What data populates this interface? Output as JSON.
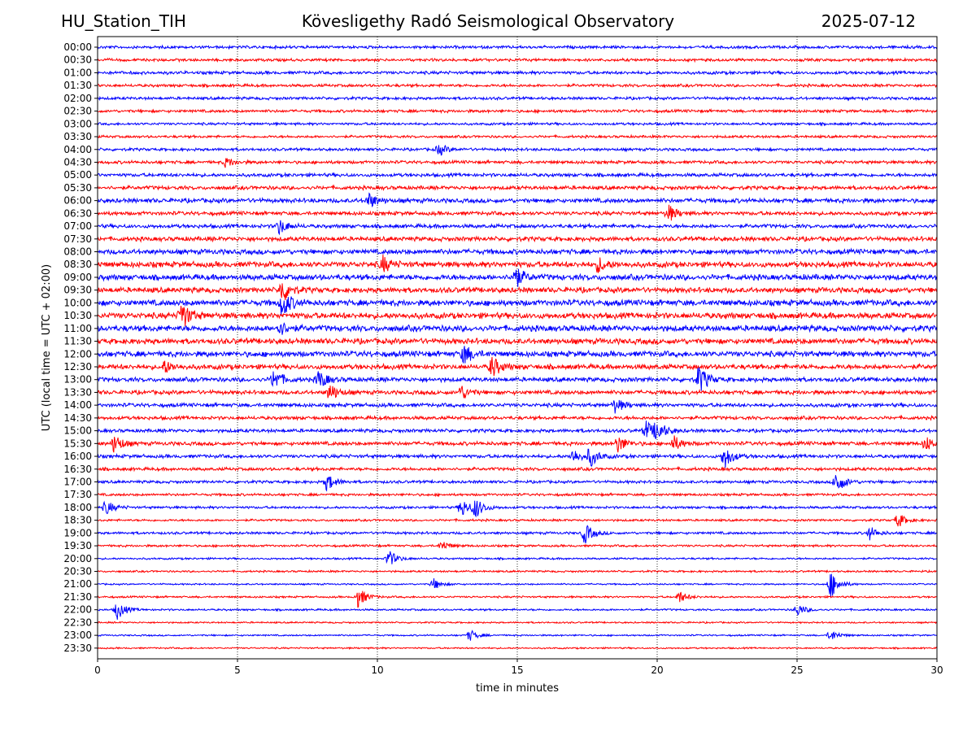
{
  "header": {
    "station": "HU_Station_TIH",
    "observatory": "Kövesligethy Radó Seismological Observatory",
    "date": "2025-07-12"
  },
  "chart_data": {
    "type": "line",
    "xlabel": "time in minutes",
    "ylabel": "UTC (local time = UTC + 02:00)",
    "xlim": [
      0,
      30
    ],
    "xticks": [
      0,
      5,
      10,
      15,
      20,
      25,
      30
    ],
    "grid": "vertical dotted at x ticks",
    "row_labels": [
      "00:00",
      "00:30",
      "01:00",
      "01:30",
      "02:00",
      "02:30",
      "03:00",
      "03:30",
      "04:00",
      "04:30",
      "05:00",
      "05:30",
      "06:00",
      "06:30",
      "07:00",
      "07:30",
      "08:00",
      "08:30",
      "09:00",
      "09:30",
      "10:00",
      "10:30",
      "11:00",
      "11:30",
      "12:00",
      "12:30",
      "13:00",
      "13:30",
      "14:00",
      "14:30",
      "15:00",
      "15:30",
      "16:00",
      "16:30",
      "17:00",
      "17:30",
      "18:00",
      "18:30",
      "19:00",
      "19:30",
      "20:00",
      "20:30",
      "21:00",
      "21:30",
      "22:00",
      "22:30",
      "23:00",
      "23:30"
    ],
    "colors": [
      "#0000ff",
      "#ff0000"
    ],
    "noise_level": [
      0.45,
      0.45,
      0.5,
      0.45,
      0.45,
      0.45,
      0.4,
      0.4,
      0.45,
      0.5,
      0.55,
      0.6,
      0.7,
      0.6,
      0.6,
      0.7,
      0.8,
      0.9,
      0.9,
      0.85,
      0.95,
      0.95,
      0.95,
      0.9,
      0.9,
      0.8,
      0.7,
      0.65,
      0.6,
      0.55,
      0.55,
      0.6,
      0.55,
      0.5,
      0.45,
      0.4,
      0.4,
      0.35,
      0.4,
      0.35,
      0.3,
      0.3,
      0.25,
      0.3,
      0.3,
      0.25,
      0.25,
      0.25
    ],
    "events": [
      {
        "row": 8,
        "t": 12.2,
        "amp": 1.2
      },
      {
        "row": 9,
        "t": 4.6,
        "amp": 1.0
      },
      {
        "row": 12,
        "t": 9.7,
        "amp": 1.5
      },
      {
        "row": 13,
        "t": 20.4,
        "amp": 1.8
      },
      {
        "row": 14,
        "t": 6.5,
        "amp": 1.6
      },
      {
        "row": 17,
        "t": 10.2,
        "amp": 1.6
      },
      {
        "row": 17,
        "t": 17.9,
        "amp": 1.5
      },
      {
        "row": 18,
        "t": 14.9,
        "amp": 2.5
      },
      {
        "row": 19,
        "t": 6.6,
        "amp": 2.5
      },
      {
        "row": 20,
        "t": 6.6,
        "amp": 3.0
      },
      {
        "row": 21,
        "t": 3.0,
        "amp": 3.0
      },
      {
        "row": 22,
        "t": 6.5,
        "amp": 1.5
      },
      {
        "row": 24,
        "t": 13.1,
        "amp": 2.0
      },
      {
        "row": 25,
        "t": 14.1,
        "amp": 2.2
      },
      {
        "row": 25,
        "t": 2.4,
        "amp": 1.3
      },
      {
        "row": 26,
        "t": 6.3,
        "amp": 2.2
      },
      {
        "row": 26,
        "t": 7.9,
        "amp": 2.0
      },
      {
        "row": 26,
        "t": 21.5,
        "amp": 3.0
      },
      {
        "row": 27,
        "t": 8.3,
        "amp": 1.8
      },
      {
        "row": 27,
        "t": 13.0,
        "amp": 1.5
      },
      {
        "row": 28,
        "t": 18.5,
        "amp": 1.5
      },
      {
        "row": 30,
        "t": 19.6,
        "amp": 2.0
      },
      {
        "row": 30,
        "t": 20.0,
        "amp": 2.0
      },
      {
        "row": 31,
        "t": 0.6,
        "amp": 2.0
      },
      {
        "row": 31,
        "t": 18.6,
        "amp": 1.8
      },
      {
        "row": 31,
        "t": 20.6,
        "amp": 1.5
      },
      {
        "row": 31,
        "t": 29.6,
        "amp": 1.5
      },
      {
        "row": 32,
        "t": 17.0,
        "amp": 1.5
      },
      {
        "row": 32,
        "t": 17.6,
        "amp": 2.0
      },
      {
        "row": 32,
        "t": 22.4,
        "amp": 2.5
      },
      {
        "row": 34,
        "t": 8.2,
        "amp": 1.8
      },
      {
        "row": 34,
        "t": 26.4,
        "amp": 2.5
      },
      {
        "row": 36,
        "t": 0.3,
        "amp": 1.5
      },
      {
        "row": 36,
        "t": 13.0,
        "amp": 2.0
      },
      {
        "row": 36,
        "t": 13.5,
        "amp": 2.0
      },
      {
        "row": 37,
        "t": 28.6,
        "amp": 1.5
      },
      {
        "row": 38,
        "t": 17.4,
        "amp": 2.2
      },
      {
        "row": 38,
        "t": 27.6,
        "amp": 1.3
      },
      {
        "row": 39,
        "t": 12.3,
        "amp": 1.0
      },
      {
        "row": 40,
        "t": 10.4,
        "amp": 1.8
      },
      {
        "row": 42,
        "t": 26.2,
        "amp": 3.0
      },
      {
        "row": 42,
        "t": 12.0,
        "amp": 1.2
      },
      {
        "row": 43,
        "t": 9.3,
        "amp": 2.2
      },
      {
        "row": 43,
        "t": 20.8,
        "amp": 1.2
      },
      {
        "row": 44,
        "t": 0.7,
        "amp": 2.0
      },
      {
        "row": 44,
        "t": 25.0,
        "amp": 1.3
      },
      {
        "row": 46,
        "t": 13.3,
        "amp": 1.2
      },
      {
        "row": 46,
        "t": 26.2,
        "amp": 1.2
      }
    ]
  }
}
